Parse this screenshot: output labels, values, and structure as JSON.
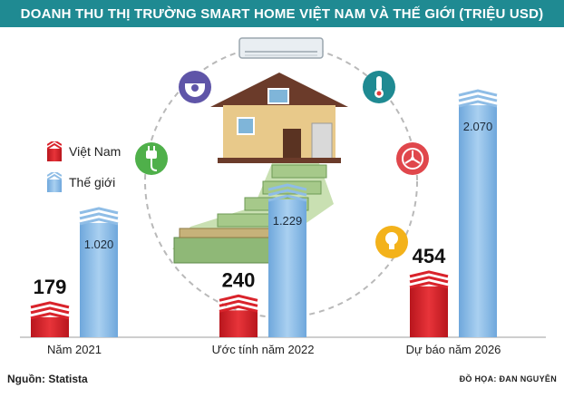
{
  "title": "DOANH THU THỊ TRƯỜNG SMART HOME VIỆT NAM VÀ THẾ GIỚI (TRIỆU USD)",
  "source": "Nguồn: Statista",
  "credit": "ĐỒ HỌA: ĐAN NGUYÊN",
  "legend": {
    "items": [
      {
        "label": "Việt Nam",
        "color": "#d9232b"
      },
      {
        "label": "Thế giới",
        "color": "#8fbde6"
      }
    ]
  },
  "icons": [
    "cctv-camera-icon",
    "plug-icon",
    "air-conditioner-icon",
    "thermometer-icon",
    "fan-icon",
    "light-bulb-icon",
    "house-icon",
    "money-stack-icon"
  ],
  "chart_data": {
    "type": "bar",
    "categories": [
      "Năm 2021",
      "Ước tính năm 2022",
      "Dự báo năm 2026"
    ],
    "series": [
      {
        "name": "Việt Nam",
        "values": [
          179,
          240,
          454
        ],
        "labels": [
          "179",
          "240",
          "454"
        ],
        "color": "#d9232b"
      },
      {
        "name": "Thế giới",
        "values": [
          1020,
          1229,
          2070
        ],
        "labels": [
          "1.020",
          "1.229",
          "2.070"
        ],
        "color": "#8fbde6"
      }
    ],
    "title": "DOANH THU THỊ TRƯỜNG SMART HOME VIỆT NAM VÀ THẾ GIỚI (TRIỆU USD)",
    "ylim": [
      0,
      2200
    ]
  }
}
